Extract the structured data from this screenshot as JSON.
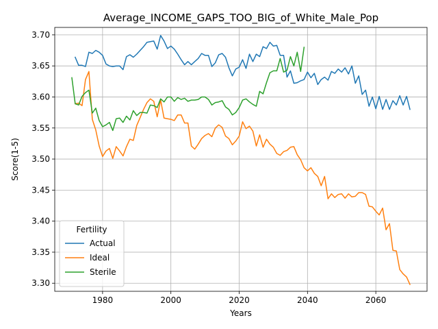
{
  "chart_data": {
    "type": "line",
    "title": "Average_INCOME_GAPS_TOO_BIG_of_White_Male_Pop",
    "xlabel": "Years",
    "ylabel": "Score(1-5)",
    "xlim": [
      1966,
      2075
    ],
    "ylim": [
      3.287,
      3.712
    ],
    "xticks": [
      1980,
      2000,
      2020,
      2040,
      2060
    ],
    "yticks": [
      3.3,
      3.35,
      3.4,
      3.45,
      3.5,
      3.55,
      3.6,
      3.65,
      3.7
    ],
    "xtick_labels": [
      "1980",
      "2000",
      "2020",
      "2040",
      "2060"
    ],
    "ytick_labels": [
      "3.30",
      "3.35",
      "3.40",
      "3.45",
      "3.50",
      "3.55",
      "3.60",
      "3.65",
      "3.70"
    ],
    "grid": true,
    "legend": {
      "title": "Fertility",
      "placement": "lower-left"
    },
    "series": [
      {
        "name": "Actual",
        "color": "#1f77b4",
        "x": [
          1972,
          1973,
          1974,
          1975,
          1976,
          1977,
          1978,
          1979,
          1980,
          1981,
          1982,
          1983,
          1984,
          1985,
          1986,
          1987,
          1988,
          1989,
          1990,
          1991,
          1992,
          1993,
          1994,
          1995,
          1996,
          1997,
          1998,
          1999,
          2000,
          2001,
          2002,
          2003,
          2004,
          2005,
          2006,
          2007,
          2008,
          2009,
          2010,
          2011,
          2012,
          2013,
          2014,
          2015,
          2016,
          2017,
          2018,
          2019,
          2020,
          2021,
          2022,
          2023,
          2024,
          2025,
          2026,
          2027,
          2028,
          2029,
          2030,
          2031,
          2032,
          2033,
          2034,
          2035,
          2036,
          2037,
          2038,
          2039,
          2040,
          2041,
          2042,
          2043,
          2044,
          2045,
          2046,
          2047,
          2048,
          2049,
          2050,
          2051,
          2052,
          2053,
          2054,
          2055,
          2056,
          2057,
          2058,
          2059,
          2060,
          2061,
          2062,
          2063,
          2064,
          2065,
          2066,
          2067,
          2068,
          2069,
          2070
        ],
        "values": [
          3.664,
          3.651,
          3.651,
          3.649,
          3.672,
          3.67,
          3.675,
          3.672,
          3.667,
          3.653,
          3.65,
          3.649,
          3.65,
          3.65,
          3.644,
          3.665,
          3.668,
          3.664,
          3.669,
          3.675,
          3.681,
          3.688,
          3.689,
          3.69,
          3.677,
          3.699,
          3.69,
          3.678,
          3.682,
          3.677,
          3.669,
          3.66,
          3.652,
          3.657,
          3.652,
          3.657,
          3.662,
          3.67,
          3.667,
          3.667,
          3.649,
          3.655,
          3.668,
          3.67,
          3.664,
          3.647,
          3.634,
          3.645,
          3.648,
          3.66,
          3.646,
          3.669,
          3.657,
          3.669,
          3.665,
          3.681,
          3.678,
          3.688,
          3.682,
          3.683,
          3.667,
          3.667,
          3.632,
          3.642,
          3.622,
          3.623,
          3.626,
          3.628,
          3.64,
          3.631,
          3.638,
          3.62,
          3.628,
          3.632,
          3.627,
          3.641,
          3.638,
          3.645,
          3.64,
          3.647,
          3.637,
          3.65,
          3.622,
          3.634,
          3.604,
          3.611,
          3.585,
          3.6,
          3.581,
          3.601,
          3.58,
          3.596,
          3.58,
          3.594,
          3.587,
          3.602,
          3.587,
          3.601,
          3.58
        ]
      },
      {
        "name": "Ideal",
        "color": "#ff7f0e",
        "x": [
          1972,
          1973,
          1974,
          1975,
          1976,
          1977,
          1978,
          1979,
          1980,
          1981,
          1982,
          1983,
          1984,
          1985,
          1986,
          1987,
          1988,
          1989,
          1990,
          1991,
          1992,
          1993,
          1994,
          1995,
          1996,
          1997,
          1998,
          1999,
          2000,
          2001,
          2002,
          2003,
          2004,
          2005,
          2006,
          2007,
          2008,
          2009,
          2010,
          2011,
          2012,
          2013,
          2014,
          2015,
          2016,
          2017,
          2018,
          2019,
          2020,
          2021,
          2022,
          2023,
          2024,
          2025,
          2026,
          2027,
          2028,
          2029,
          2030,
          2031,
          2032,
          2033,
          2034,
          2035,
          2036,
          2037,
          2038,
          2039,
          2040,
          2041,
          2042,
          2043,
          2044,
          2045,
          2046,
          2047,
          2048,
          2049,
          2050,
          2051,
          2052,
          2053,
          2054,
          2055,
          2056,
          2057,
          2058,
          2059,
          2060,
          2061,
          2062,
          2063,
          2064,
          2065,
          2066,
          2067,
          2068,
          2069,
          2070
        ],
        "values": [
          3.589,
          3.59,
          3.586,
          3.628,
          3.641,
          3.564,
          3.547,
          3.521,
          3.504,
          3.513,
          3.517,
          3.501,
          3.52,
          3.513,
          3.505,
          3.52,
          3.532,
          3.53,
          3.554,
          3.567,
          3.58,
          3.591,
          3.597,
          3.593,
          3.568,
          3.595,
          3.566,
          3.565,
          3.564,
          3.562,
          3.571,
          3.571,
          3.558,
          3.558,
          3.521,
          3.516,
          3.524,
          3.533,
          3.538,
          3.541,
          3.536,
          3.55,
          3.555,
          3.551,
          3.537,
          3.533,
          3.523,
          3.529,
          3.537,
          3.56,
          3.549,
          3.553,
          3.545,
          3.521,
          3.539,
          3.519,
          3.532,
          3.524,
          3.519,
          3.509,
          3.506,
          3.512,
          3.514,
          3.519,
          3.52,
          3.507,
          3.499,
          3.486,
          3.481,
          3.486,
          3.477,
          3.472,
          3.457,
          3.472,
          3.436,
          3.444,
          3.438,
          3.443,
          3.444,
          3.437,
          3.444,
          3.439,
          3.44,
          3.446,
          3.446,
          3.443,
          3.424,
          3.423,
          3.416,
          3.41,
          3.421,
          3.386,
          3.396,
          3.353,
          3.352,
          3.322,
          3.315,
          3.31,
          3.298
        ]
      },
      {
        "name": "Sterile",
        "color": "#2ca02c",
        "x": [
          1971,
          1972,
          1973,
          1974,
          1975,
          1976,
          1977,
          1978,
          1979,
          1980,
          1981,
          1982,
          1983,
          1984,
          1985,
          1986,
          1987,
          1988,
          1989,
          1990,
          1991,
          1992,
          1993,
          1994,
          1995,
          1996,
          1997,
          1998,
          1999,
          2000,
          2001,
          2002,
          2003,
          2004,
          2005,
          2006,
          2007,
          2008,
          2009,
          2010,
          2011,
          2012,
          2013,
          2014,
          2015,
          2016,
          2017,
          2018,
          2019,
          2020,
          2021,
          2022,
          2023,
          2024,
          2025,
          2026,
          2027,
          2028,
          2029,
          2030,
          2031,
          2032,
          2033,
          2034,
          2035,
          2036,
          2037,
          2038,
          2039
        ],
        "values": [
          3.631,
          3.589,
          3.587,
          3.601,
          3.607,
          3.611,
          3.574,
          3.582,
          3.562,
          3.552,
          3.555,
          3.559,
          3.546,
          3.565,
          3.566,
          3.559,
          3.569,
          3.563,
          3.578,
          3.57,
          3.575,
          3.575,
          3.574,
          3.587,
          3.586,
          3.583,
          3.597,
          3.592,
          3.6,
          3.6,
          3.593,
          3.599,
          3.596,
          3.598,
          3.593,
          3.595,
          3.595,
          3.596,
          3.6,
          3.6,
          3.596,
          3.587,
          3.591,
          3.592,
          3.594,
          3.584,
          3.58,
          3.571,
          3.575,
          3.583,
          3.595,
          3.597,
          3.592,
          3.588,
          3.585,
          3.609,
          3.605,
          3.623,
          3.639,
          3.642,
          3.642,
          3.662,
          3.64,
          3.643,
          3.665,
          3.65,
          3.672,
          3.641,
          3.68
        ]
      }
    ]
  }
}
